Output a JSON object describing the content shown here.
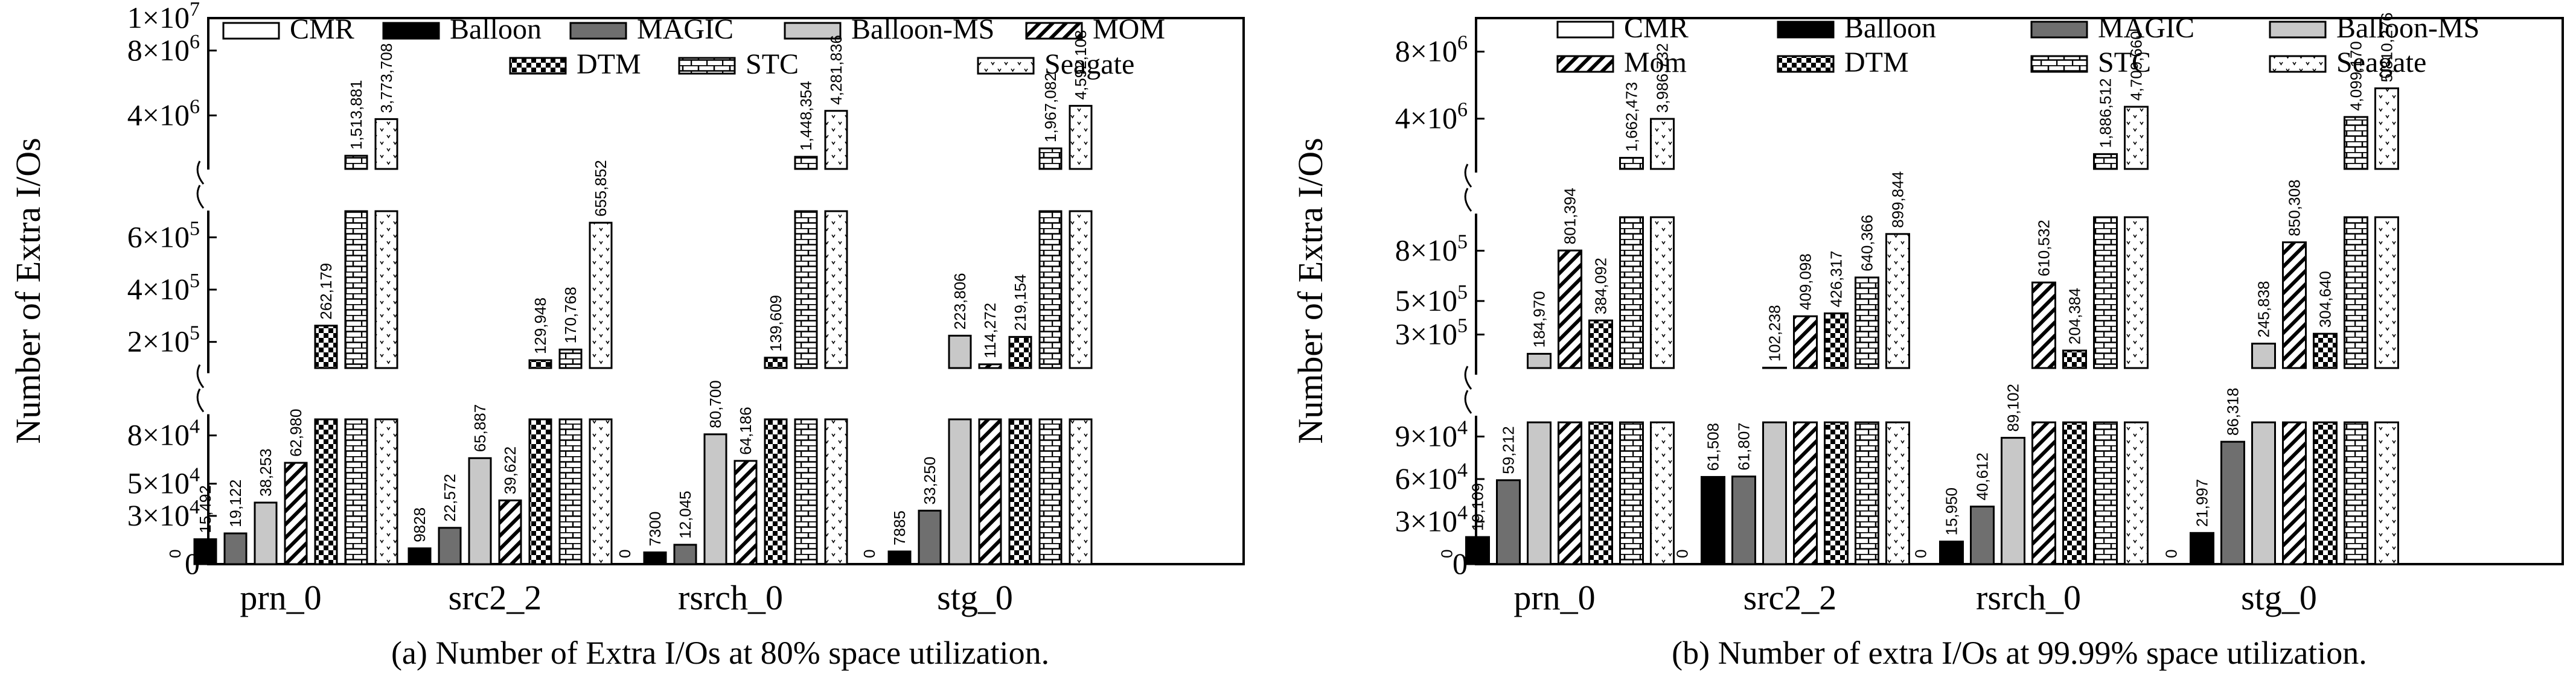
{
  "legend_order": [
    "CMR",
    "Balloon",
    "MAGIC",
    "Balloon-MS",
    "MOM",
    "DTM",
    "STC",
    "Seagate"
  ],
  "styles": {
    "CMR": {
      "fill": "#ffffff",
      "pattern": "none"
    },
    "Balloon": {
      "fill": "#000000",
      "pattern": "none"
    },
    "MAGIC": {
      "fill": "#6f6f6f",
      "pattern": "none"
    },
    "Balloon-MS": {
      "fill": "#c8c8c8",
      "pattern": "none"
    },
    "MOM": {
      "fill": "#ffffff",
      "pattern": "diag"
    },
    "DTM": {
      "fill": "#ffffff",
      "pattern": "check"
    },
    "STC": {
      "fill": "#ffffff",
      "pattern": "brick"
    },
    "Seagate": {
      "fill": "#ffffff",
      "pattern": "dots"
    }
  },
  "chart_data": [
    {
      "id": "a",
      "type": "bar",
      "broken_axis": true,
      "caption": "(a) Number of Extra I/Os at 80% space utilization.",
      "ylabel": "Number of Extra I/Os",
      "categories": [
        "prn_0",
        "src2_2",
        "rsrch_0",
        "stg_0"
      ],
      "legend_labels": [
        "CMR",
        "Balloon",
        "MAGIC",
        "Balloon-MS",
        "MOM",
        "DTM",
        "STC",
        "Seagate"
      ],
      "segments": [
        {
          "range": [
            0,
            90000
          ],
          "ticks": [
            {
              "v": 0,
              "label": "0"
            },
            {
              "v": 30000,
              "m": "3",
              "e": "4"
            },
            {
              "v": 50000,
              "m": "5",
              "e": "4"
            },
            {
              "v": 80000,
              "m": "8",
              "e": "4"
            }
          ]
        },
        {
          "range": [
            100000,
            700000
          ],
          "ticks": [
            {
              "v": 200000,
              "m": "2",
              "e": "5"
            },
            {
              "v": 400000,
              "m": "4",
              "e": "5"
            },
            {
              "v": 600000,
              "m": "6",
              "e": "5"
            }
          ]
        },
        {
          "range": [
            700000,
            10000000
          ],
          "ticks": [
            {
              "v": 4000000,
              "m": "4",
              "e": "6"
            },
            {
              "v": 8000000,
              "m": "8",
              "e": "6"
            },
            {
              "v": 10000000,
              "m": "1",
              "e": "7"
            }
          ]
        }
      ],
      "series": [
        {
          "name": "CMR",
          "values": [
            0,
            0,
            0,
            0
          ],
          "labels": [
            "0",
            "0",
            "0",
            "0"
          ]
        },
        {
          "name": "Balloon",
          "values": [
            15492,
            9828,
            7300,
            7885
          ],
          "labels": [
            "15,492",
            "9828",
            "7300",
            "7885"
          ]
        },
        {
          "name": "MAGIC",
          "values": [
            19122,
            22572,
            12045,
            33250
          ],
          "labels": [
            "19,122",
            "22,572",
            "12,045",
            "33,250"
          ]
        },
        {
          "name": "Balloon-MS",
          "values": [
            38253,
            65887,
            80700,
            223806
          ],
          "labels": [
            "38,253",
            "65,887",
            "80,700",
            "223,806"
          ]
        },
        {
          "name": "MOM",
          "values": [
            62980,
            39622,
            64186,
            114272
          ],
          "labels": [
            "62,980",
            "39,622",
            "64,186",
            "114,272"
          ]
        },
        {
          "name": "DTM",
          "values": [
            262179,
            129948,
            139609,
            219154
          ],
          "labels": [
            "262,179",
            "129,948",
            "139,609",
            "219,154"
          ]
        },
        {
          "name": "STC",
          "values": [
            1513881,
            170768,
            1448354,
            1967082
          ],
          "labels": [
            "1,513,881",
            "170,768",
            "1,448,354",
            "1,967,082"
          ]
        },
        {
          "name": "Seagate",
          "values": [
            3773708,
            655852,
            4281836,
            4592108
          ],
          "labels": [
            "3,773,708",
            "655,852",
            "4,281,836",
            "4,592,108"
          ]
        }
      ]
    },
    {
      "id": "b",
      "type": "bar",
      "broken_axis": true,
      "caption": "(b) Number of extra I/Os at 99.99% space utilization.",
      "ylabel": "Number of Extra I/Os",
      "categories": [
        "prn_0",
        "src2_2",
        "rsrch_0",
        "stg_0"
      ],
      "legend_labels": [
        "CMR",
        "Balloon",
        "MAGIC",
        "Balloon-MS",
        "Mom",
        "DTM",
        "STC",
        "Seagate"
      ],
      "segments": [
        {
          "range": [
            0,
            100000
          ],
          "ticks": [
            {
              "v": 0,
              "label": "0"
            },
            {
              "v": 30000,
              "m": "3",
              "e": "4"
            },
            {
              "v": 60000,
              "m": "6",
              "e": "4"
            },
            {
              "v": 90000,
              "m": "9",
              "e": "4"
            }
          ]
        },
        {
          "range": [
            100000,
            1000000
          ],
          "ticks": [
            {
              "v": 300000,
              "m": "3",
              "e": "5"
            },
            {
              "v": 500000,
              "m": "5",
              "e": "5"
            },
            {
              "v": 800000,
              "m": "8",
              "e": "5"
            }
          ]
        },
        {
          "range": [
            1000000,
            10000000
          ],
          "ticks": [
            {
              "v": 4000000,
              "m": "4",
              "e": "6"
            },
            {
              "v": 8000000,
              "m": "8",
              "e": "6"
            }
          ]
        }
      ],
      "series": [
        {
          "name": "CMR",
          "values": [
            0,
            0,
            0,
            0
          ],
          "labels": [
            "0",
            "0",
            "0",
            "0"
          ]
        },
        {
          "name": "Balloon",
          "values": [
            19109,
            61508,
            15950,
            21997
          ],
          "labels": [
            "19,109",
            "61,508",
            "15,950",
            "21,997"
          ]
        },
        {
          "name": "MAGIC",
          "values": [
            59212,
            61807,
            40612,
            86318
          ],
          "labels": [
            "59,212",
            "61,807",
            "40,612",
            "86,318"
          ]
        },
        {
          "name": "Balloon-MS",
          "values": [
            184970,
            102238,
            89102,
            245838
          ],
          "labels": [
            "184,970",
            "102,238",
            "89,102",
            "245,838"
          ]
        },
        {
          "name": "MOM",
          "values": [
            801394,
            409098,
            610532,
            850308
          ],
          "labels": [
            "801,394",
            "409,098",
            "610,532",
            "850,308"
          ]
        },
        {
          "name": "DTM",
          "values": [
            384092,
            426317,
            204384,
            304640
          ],
          "labels": [
            "384,092",
            "426,317",
            "204,384",
            "304,640"
          ]
        },
        {
          "name": "STC",
          "values": [
            1662473,
            640366,
            1886512,
            4099170
          ],
          "labels": [
            "1,662,473",
            "640,366",
            "1,886,512",
            "4,099,170"
          ]
        },
        {
          "name": "Seagate",
          "values": [
            3986732,
            899844,
            4709660,
            5810276
          ],
          "labels": [
            "3,986,732",
            "899,844",
            "4,709,660",
            "5,810,276"
          ]
        }
      ]
    }
  ]
}
